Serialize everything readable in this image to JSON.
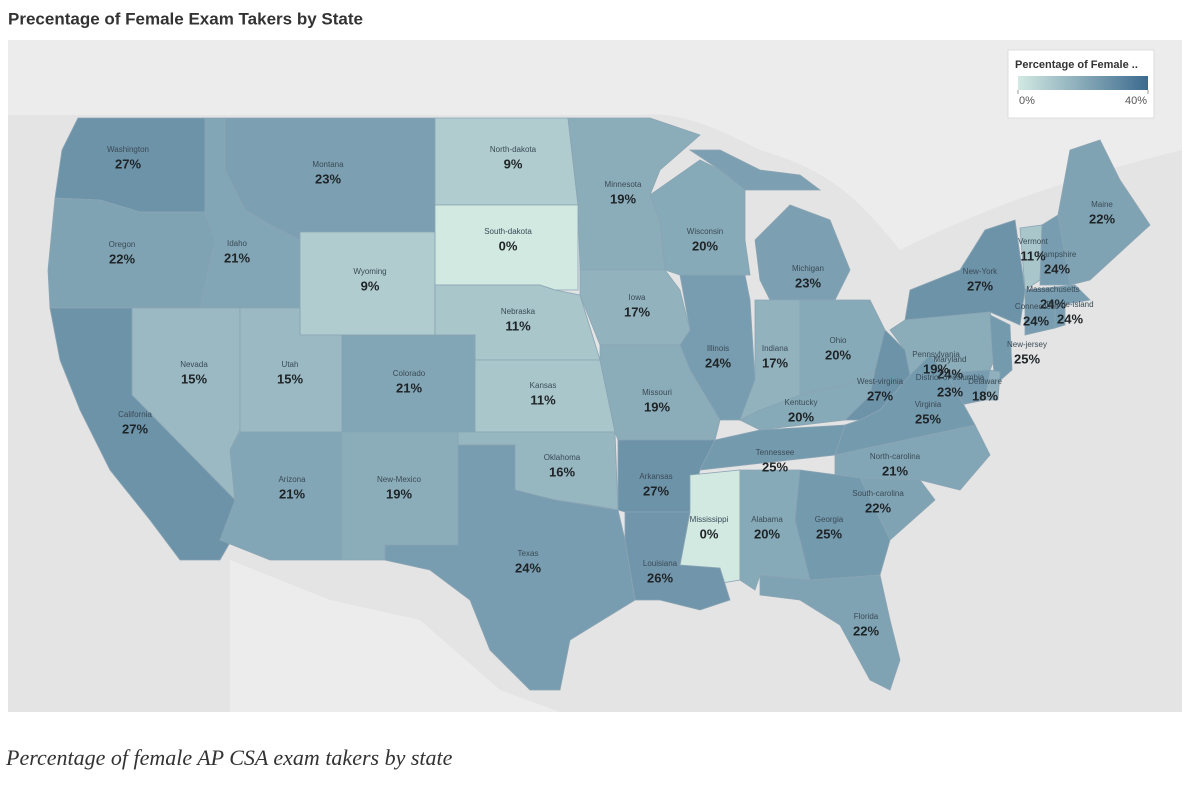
{
  "chart_data": {
    "type": "choropleth",
    "title": "Precentage of Female Exam Takers by State",
    "caption": "Percentage of female AP CSA exam takers by state",
    "legend_title": "Percentage of Female ..",
    "colors": [
      "#d2e9e2",
      "#3c6a8e"
    ],
    "clim": [
      0,
      40
    ],
    "cticks": [
      {
        "value": 0,
        "label": "0%"
      },
      {
        "value": 40,
        "label": "40%"
      }
    ],
    "categories": [
      "Washington",
      "Montana",
      "North-dakota",
      "Minnesota",
      "Oregon",
      "Idaho",
      "South-dakota",
      "Wisconsin",
      "Wyoming",
      "Michigan",
      "Maine",
      "Vermont",
      "Hampshire",
      "Massachusetts",
      "New-York",
      "Connecticut",
      "Rhode-island",
      "Nebraska",
      "Iowa",
      "Pennsylvania",
      "New-jersey",
      "Nevada",
      "Utah",
      "Colorado",
      "Illinois",
      "Indiana",
      "Ohio",
      "Maryland",
      "Delaware",
      "District-of-columbia",
      "California",
      "Kansas",
      "Missouri",
      "West-virginia",
      "Kentucky",
      "Virginia",
      "Arizona",
      "New-Mexico",
      "Oklahoma",
      "Arkansas",
      "Tennessee",
      "North-carolina",
      "South-carolina",
      "Mississippi",
      "Alabama",
      "Georgia",
      "Texas",
      "Louisiana",
      "Florida"
    ],
    "values": [
      27,
      23,
      9,
      19,
      22,
      21,
      0,
      20,
      9,
      23,
      22,
      11,
      24,
      24,
      27,
      24,
      24,
      11,
      17,
      19,
      25,
      15,
      15,
      21,
      24,
      17,
      20,
      24,
      18,
      23,
      27,
      11,
      19,
      27,
      20,
      25,
      21,
      19,
      16,
      27,
      25,
      21,
      22,
      0,
      20,
      25,
      24,
      26,
      22
    ],
    "value_labels": [
      "27%",
      "23%",
      "9%",
      "19%",
      "22%",
      "21%",
      "0%",
      "20%",
      "9%",
      "23%",
      "22%",
      "11%",
      "24%",
      "24%",
      "27%",
      "24%",
      "24%",
      "11%",
      "17%",
      "19%",
      "25%",
      "15%",
      "15%",
      "21%",
      "24%",
      "17%",
      "20%",
      "24%",
      "18%",
      "23%",
      "27%",
      "11%",
      "19%",
      "27%",
      "20%",
      "25%",
      "21%",
      "19%",
      "16%",
      "27%",
      "25%",
      "21%",
      "22%",
      "0%",
      "20%",
      "25%",
      "24%",
      "26%",
      "22%"
    ]
  }
}
